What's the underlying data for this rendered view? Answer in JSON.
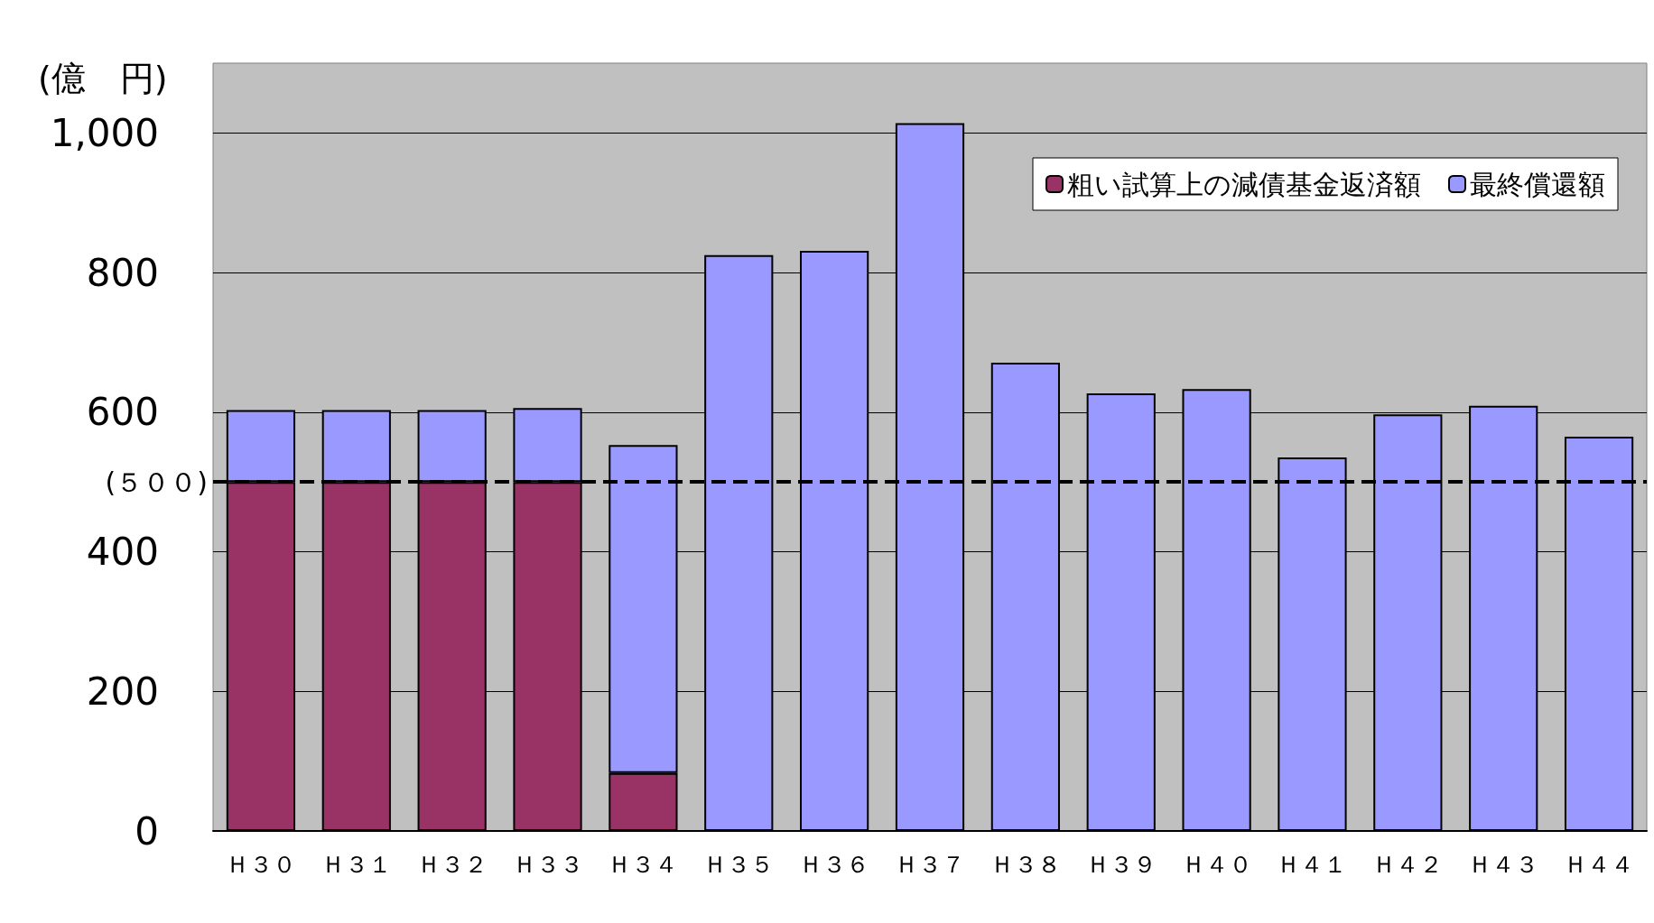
{
  "chart_data": {
    "type": "bar",
    "ylabel": "(億　円)",
    "categories": [
      "Ｈ３０",
      "Ｈ３１",
      "Ｈ３２",
      "Ｈ３３",
      "Ｈ３４",
      "Ｈ３５",
      "Ｈ３６",
      "Ｈ３７",
      "Ｈ３８",
      "Ｈ３９",
      "Ｈ４０",
      "Ｈ４１",
      "Ｈ４２",
      "Ｈ４３",
      "Ｈ４４"
    ],
    "stacked": true,
    "series": [
      {
        "name": "粗い試算上の減債基金返済額",
        "color": "#993366",
        "values": [
          500,
          500,
          500,
          500,
          83,
          null,
          null,
          null,
          null,
          null,
          null,
          null,
          null,
          null,
          null
        ]
      },
      {
        "name": "最終償還額",
        "color": "#9999ff",
        "values": [
          103,
          103,
          103,
          106,
          470,
          825,
          831,
          1014,
          671,
          627,
          633,
          535,
          597,
          609,
          565
        ]
      }
    ],
    "ylim": [
      0,
      1100
    ],
    "yticks": [
      0,
      200,
      400,
      600,
      800,
      {
        "value": 1000,
        "label": "1,000"
      }
    ],
    "grid": "y",
    "legend": "top right",
    "ref_lines": [
      {
        "axis": "y",
        "value": 500,
        "label": "(５００)",
        "color": "#000000",
        "line_style": "dashed"
      }
    ]
  }
}
